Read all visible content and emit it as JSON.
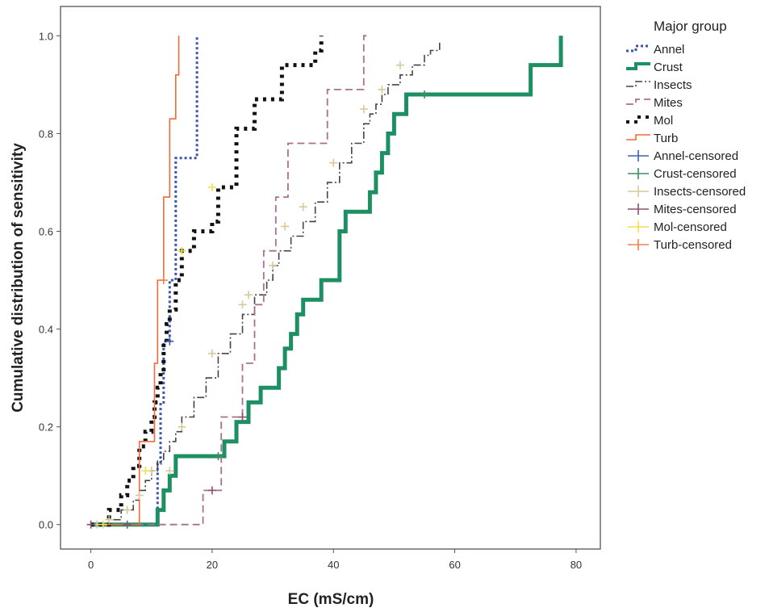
{
  "chart_data": {
    "type": "line",
    "step": true,
    "xlabel": "EC (mS/cm)",
    "ylabel": "Cumulative distribution of sensitivity",
    "xlim": [
      -5,
      84
    ],
    "ylim": [
      -0.05,
      1.06
    ],
    "x_ticks": [
      0,
      20,
      40,
      60,
      80
    ],
    "y_ticks": [
      0.0,
      0.2,
      0.4,
      0.6,
      0.8,
      1.0
    ],
    "y_tick_labels": [
      "0.0",
      "0.2",
      "0.4",
      "0.6",
      "0.8",
      "1.0"
    ],
    "grid": false,
    "legend": {
      "title": "Major group",
      "placement": "right",
      "entries": [
        "Annel",
        "Crust",
        "Insects",
        "Mites",
        "Mol",
        "Turb",
        "Annel-censored",
        "Crust-censored",
        "Insects-censored",
        "Mites-censored",
        "Mol-censored",
        "Turb-censored"
      ]
    },
    "series": [
      {
        "name": "Annel",
        "color": "#3b55a8",
        "style": "dotted",
        "width": 3,
        "x": [
          0,
          11,
          11.5,
          12,
          12.5,
          13,
          13.5,
          14,
          15,
          17,
          17.5
        ],
        "y": [
          0,
          0.125,
          0.25,
          0.375,
          0.375,
          0.5,
          0.5,
          0.75,
          0.75,
          0.75,
          1.0
        ]
      },
      {
        "name": "Crust",
        "color": "#1e8f63",
        "style": "solid",
        "width": 5,
        "x": [
          0,
          8,
          11,
          12,
          13,
          14,
          16,
          17,
          20,
          22,
          24,
          25,
          26,
          27,
          28,
          29,
          31,
          32,
          33,
          34,
          34.5,
          35,
          36,
          38,
          41,
          42,
          43,
          46,
          47,
          48,
          49,
          50,
          52,
          54,
          62,
          72.5,
          77.5
        ],
        "y": [
          0,
          0,
          0.03,
          0.07,
          0.1,
          0.14,
          0.14,
          0.14,
          0.14,
          0.17,
          0.21,
          0.21,
          0.25,
          0.25,
          0.28,
          0.28,
          0.32,
          0.36,
          0.39,
          0.43,
          0.43,
          0.46,
          0.46,
          0.5,
          0.6,
          0.64,
          0.64,
          0.68,
          0.72,
          0.76,
          0.8,
          0.84,
          0.88,
          0.88,
          0.88,
          0.94,
          1.0
        ]
      },
      {
        "name": "Insects",
        "color": "#444444",
        "style": "dashdot",
        "width": 1.6,
        "x": [
          0,
          3,
          5,
          7,
          8,
          9,
          10,
          11,
          12,
          13,
          14,
          15,
          17,
          19,
          21,
          23,
          25,
          27,
          29,
          30,
          31,
          33,
          35,
          37,
          39,
          41,
          43,
          45,
          46,
          47,
          48,
          49,
          51,
          53,
          55,
          56,
          57.5
        ],
        "y": [
          0,
          0.01,
          0.03,
          0.05,
          0.07,
          0.09,
          0.11,
          0.13,
          0.15,
          0.17,
          0.19,
          0.22,
          0.26,
          0.3,
          0.35,
          0.39,
          0.43,
          0.47,
          0.5,
          0.53,
          0.56,
          0.59,
          0.62,
          0.66,
          0.7,
          0.74,
          0.78,
          0.82,
          0.84,
          0.86,
          0.88,
          0.9,
          0.92,
          0.94,
          0.96,
          0.97,
          0.99
        ]
      },
      {
        "name": "Mites",
        "color": "#a8708f",
        "style": "dashed",
        "width": 1.8,
        "x": [
          0,
          18.5,
          21.5,
          25,
          27,
          28.5,
          30.5,
          32.5,
          36,
          39,
          43,
          45,
          46
        ],
        "y": [
          0,
          0.07,
          0.22,
          0.33,
          0.45,
          0.56,
          0.67,
          0.78,
          0.78,
          0.89,
          0.89,
          1.0,
          1.0
        ]
      },
      {
        "name": "Mol",
        "color": "#111111",
        "style": "dotted",
        "width": 5,
        "x": [
          0,
          3,
          5,
          6,
          7,
          8,
          9,
          10,
          10.5,
          11,
          11.5,
          12,
          12.5,
          13,
          14,
          15,
          17,
          20,
          21,
          24,
          25.5,
          27,
          30,
          31.5,
          35,
          37,
          38
        ],
        "y": [
          0,
          0.03,
          0.06,
          0.09,
          0.12,
          0.16,
          0.19,
          0.22,
          0.25,
          0.28,
          0.31,
          0.37,
          0.41,
          0.44,
          0.5,
          0.56,
          0.6,
          0.62,
          0.69,
          0.81,
          0.81,
          0.87,
          0.87,
          0.94,
          0.94,
          0.97,
          1.0
        ]
      },
      {
        "name": "Turb",
        "color": "#f06a3a",
        "style": "solid",
        "width": 1.6,
        "x": [
          0,
          8,
          10.5,
          11,
          12,
          13,
          14,
          14.5
        ],
        "y": [
          0,
          0.17,
          0.33,
          0.5,
          0.67,
          0.83,
          0.92,
          1.0
        ]
      }
    ],
    "censored": [
      {
        "name": "Insects-censored",
        "color": "#d8c89a",
        "points": [
          [
            1,
            0
          ],
          [
            3,
            0.01
          ],
          [
            6,
            0.03
          ],
          [
            8,
            0.06
          ],
          [
            10,
            0.11
          ],
          [
            13,
            0.11
          ],
          [
            15,
            0.2
          ],
          [
            20,
            0.35
          ],
          [
            25,
            0.45
          ],
          [
            26,
            0.47
          ],
          [
            30,
            0.53
          ],
          [
            32,
            0.61
          ],
          [
            35,
            0.65
          ],
          [
            40,
            0.74
          ],
          [
            45,
            0.85
          ],
          [
            48,
            0.89
          ],
          [
            51,
            0.94
          ]
        ]
      },
      {
        "name": "Mol-censored",
        "color": "#f0e050",
        "points": [
          [
            2,
            0
          ],
          [
            9,
            0.11
          ],
          [
            15,
            0.56
          ],
          [
            20,
            0.69
          ]
        ]
      },
      {
        "name": "Mites-censored",
        "color": "#8a5070",
        "points": [
          [
            0,
            0
          ],
          [
            6,
            0
          ],
          [
            20,
            0.07
          ],
          [
            25,
            0.22
          ]
        ]
      },
      {
        "name": "Crust-censored",
        "color": "#3a9060",
        "points": [
          [
            21,
            0.14
          ],
          [
            55,
            0.88
          ]
        ]
      },
      {
        "name": "Annel-censored",
        "color": "#4060b0",
        "points": [
          [
            13,
            0.375
          ]
        ]
      },
      {
        "name": "Turb-censored",
        "color": "#f08050",
        "points": [
          [
            12,
            0.5
          ]
        ]
      }
    ]
  }
}
